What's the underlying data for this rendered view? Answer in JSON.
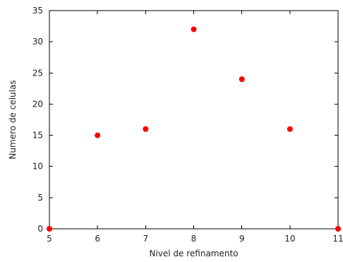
{
  "chart_data": {
    "type": "scatter",
    "title": "",
    "xlabel": "Nivel de refinamento",
    "ylabel": "Numero de celulas",
    "xlim": [
      5,
      11
    ],
    "ylim": [
      0,
      35
    ],
    "xticks": [
      5,
      6,
      7,
      8,
      9,
      10,
      11
    ],
    "yticks": [
      0,
      5,
      10,
      15,
      20,
      25,
      30,
      35
    ],
    "grid": false,
    "legend": "none",
    "series": [
      {
        "color": "#ff0000",
        "points": [
          {
            "x": 5,
            "y": 0
          },
          {
            "x": 6,
            "y": 15
          },
          {
            "x": 7,
            "y": 16
          },
          {
            "x": 8,
            "y": 32
          },
          {
            "x": 9,
            "y": 24
          },
          {
            "x": 10,
            "y": 16
          },
          {
            "x": 11,
            "y": 0
          }
        ]
      }
    ]
  }
}
